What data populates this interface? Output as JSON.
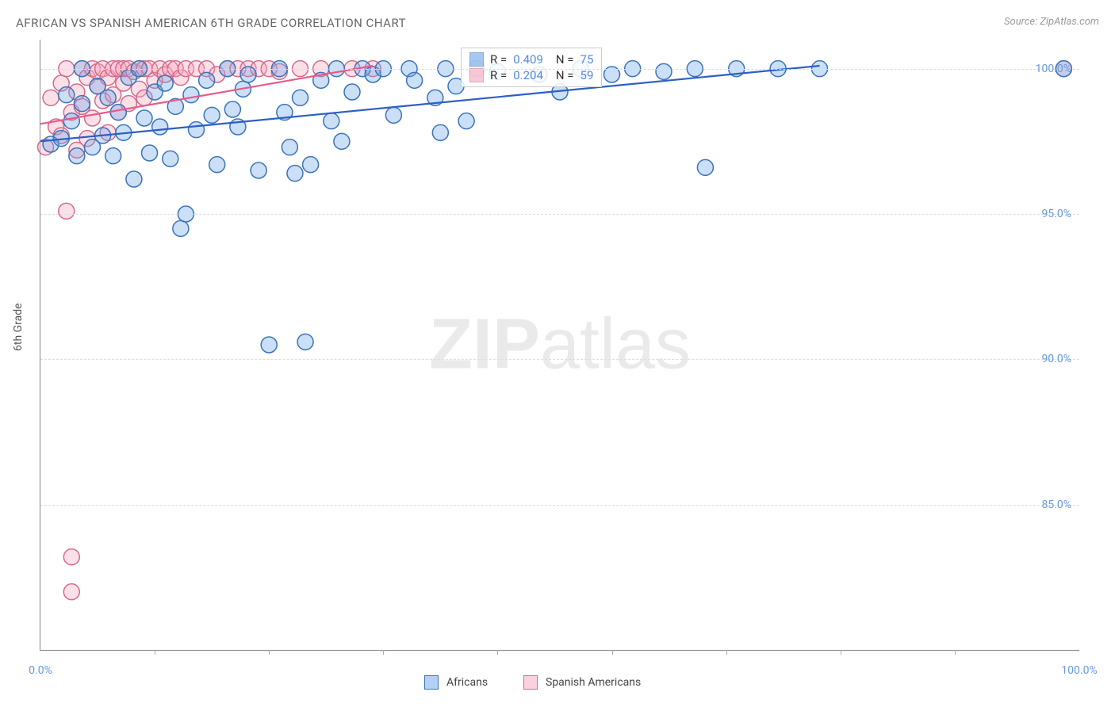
{
  "title": "AFRICAN VS SPANISH AMERICAN 6TH GRADE CORRELATION CHART",
  "source": "Source: ZipAtlas.com",
  "watermark_zip": "ZIP",
  "watermark_atlas": "atlas",
  "y_axis_label": "6th Grade",
  "chart": {
    "type": "scatter",
    "background_color": "#ffffff",
    "grid_color": "#dddddd",
    "axis_color": "#888888",
    "label_color": "#6699dd",
    "marker_radius": 10,
    "marker_stroke_width": 1.5,
    "marker_opacity": 0.35,
    "xlim": [
      0,
      100
    ],
    "ylim": [
      80,
      101
    ],
    "x_ticks_major": [
      0,
      100
    ],
    "x_ticks_minor": [
      11,
      22,
      33,
      44,
      55,
      66,
      77,
      88
    ],
    "x_tick_labels": [
      "0.0%",
      "100.0%"
    ],
    "y_ticks": [
      85,
      90,
      95,
      100
    ],
    "y_tick_labels": [
      "85.0%",
      "90.0%",
      "95.0%",
      "100.0%"
    ],
    "series": [
      {
        "name": "Africans",
        "fill": "#6aa3e8",
        "stroke": "#3a73b8",
        "R": "0.409",
        "N": "75",
        "trend": {
          "x1": 0,
          "y1": 97.5,
          "x2": 75,
          "y2": 100.1,
          "stroke": "#2c5fc4",
          "width": 2.2
        },
        "points": [
          [
            1,
            97.4
          ],
          [
            2,
            97.6
          ],
          [
            2.5,
            99.1
          ],
          [
            3,
            98.2
          ],
          [
            3.5,
            97.0
          ],
          [
            4,
            98.8
          ],
          [
            4,
            100
          ],
          [
            5,
            97.3
          ],
          [
            5.5,
            99.4
          ],
          [
            6,
            97.7
          ],
          [
            6.5,
            99.0
          ],
          [
            7,
            97.0
          ],
          [
            7.5,
            98.5
          ],
          [
            8,
            97.8
          ],
          [
            8.5,
            99.7
          ],
          [
            9,
            96.2
          ],
          [
            9.5,
            100
          ],
          [
            10,
            98.3
          ],
          [
            10.5,
            97.1
          ],
          [
            11,
            99.2
          ],
          [
            11.5,
            98.0
          ],
          [
            12,
            99.5
          ],
          [
            12.5,
            96.9
          ],
          [
            13,
            98.7
          ],
          [
            13.5,
            94.5
          ],
          [
            14,
            95.0
          ],
          [
            14.5,
            99.1
          ],
          [
            15,
            97.9
          ],
          [
            16,
            99.6
          ],
          [
            16.5,
            98.4
          ],
          [
            17,
            96.7
          ],
          [
            18,
            100
          ],
          [
            18.5,
            98.6
          ],
          [
            19,
            98.0
          ],
          [
            19.5,
            99.3
          ],
          [
            20,
            99.8
          ],
          [
            21,
            96.5
          ],
          [
            22,
            90.5
          ],
          [
            23,
            100
          ],
          [
            23.5,
            98.5
          ],
          [
            24,
            97.3
          ],
          [
            24.5,
            96.4
          ],
          [
            25,
            99.0
          ],
          [
            25.5,
            90.6
          ],
          [
            26,
            96.7
          ],
          [
            27,
            99.6
          ],
          [
            28,
            98.2
          ],
          [
            28.5,
            100
          ],
          [
            29,
            97.5
          ],
          [
            30,
            99.2
          ],
          [
            31,
            100
          ],
          [
            32,
            99.8
          ],
          [
            33,
            100
          ],
          [
            34,
            98.4
          ],
          [
            35.5,
            100
          ],
          [
            36,
            99.6
          ],
          [
            38,
            99.0
          ],
          [
            38.5,
            97.8
          ],
          [
            39,
            100
          ],
          [
            40,
            99.4
          ],
          [
            41,
            98.2
          ],
          [
            42,
            100
          ],
          [
            44,
            99.9
          ],
          [
            48,
            99.8
          ],
          [
            52,
            100
          ],
          [
            55,
            99.8
          ],
          [
            57,
            100
          ],
          [
            60,
            99.9
          ],
          [
            63,
            100
          ],
          [
            64,
            96.6
          ],
          [
            67,
            100
          ],
          [
            71,
            100
          ],
          [
            75,
            100
          ],
          [
            98.5,
            100
          ],
          [
            50,
            99.2
          ]
        ]
      },
      {
        "name": "Spanish Americans",
        "fill": "#f5a6bd",
        "stroke": "#d46a8a",
        "R": "0.204",
        "N": "59",
        "trend": {
          "x1": 0,
          "y1": 98.1,
          "x2": 32,
          "y2": 100.1,
          "stroke": "#e85a8a",
          "width": 2.2
        },
        "points": [
          [
            0.5,
            97.3
          ],
          [
            1,
            99.0
          ],
          [
            1.5,
            98.0
          ],
          [
            2,
            97.7
          ],
          [
            2,
            99.5
          ],
          [
            2.5,
            100
          ],
          [
            2.5,
            95.1
          ],
          [
            3,
            98.5
          ],
          [
            3,
            83.2
          ],
          [
            3,
            82.0
          ],
          [
            3.5,
            99.2
          ],
          [
            3.5,
            97.2
          ],
          [
            4,
            100
          ],
          [
            4,
            98.7
          ],
          [
            4.5,
            99.7
          ],
          [
            4.5,
            97.6
          ],
          [
            5,
            100
          ],
          [
            5,
            98.3
          ],
          [
            5.5,
            99.4
          ],
          [
            5.5,
            99.9
          ],
          [
            6,
            100
          ],
          [
            6,
            98.9
          ],
          [
            6.5,
            99.7
          ],
          [
            6.5,
            97.8
          ],
          [
            7,
            100
          ],
          [
            7,
            99.1
          ],
          [
            7.5,
            98.5
          ],
          [
            7.5,
            100
          ],
          [
            8,
            99.5
          ],
          [
            8,
            100
          ],
          [
            8.5,
            98.8
          ],
          [
            8.5,
            100
          ],
          [
            9,
            99.9
          ],
          [
            9.5,
            99.3
          ],
          [
            9.5,
            100
          ],
          [
            10,
            100
          ],
          [
            10,
            99.0
          ],
          [
            10.5,
            100
          ],
          [
            11,
            99.6
          ],
          [
            11.5,
            100
          ],
          [
            12,
            99.8
          ],
          [
            12.5,
            100
          ],
          [
            13,
            100
          ],
          [
            13.5,
            99.7
          ],
          [
            14,
            100
          ],
          [
            15,
            100
          ],
          [
            16,
            100
          ],
          [
            17,
            99.8
          ],
          [
            18,
            100
          ],
          [
            19,
            100
          ],
          [
            20,
            100
          ],
          [
            21,
            100
          ],
          [
            22,
            100
          ],
          [
            23,
            99.9
          ],
          [
            25,
            100
          ],
          [
            27,
            100
          ],
          [
            30,
            100
          ],
          [
            32,
            100
          ],
          [
            98.5,
            100
          ]
        ]
      }
    ]
  },
  "stats_labels": {
    "R": "R =",
    "N": "N ="
  },
  "legend_labels": {
    "africans": "Africans",
    "spanish": "Spanish Americans"
  }
}
